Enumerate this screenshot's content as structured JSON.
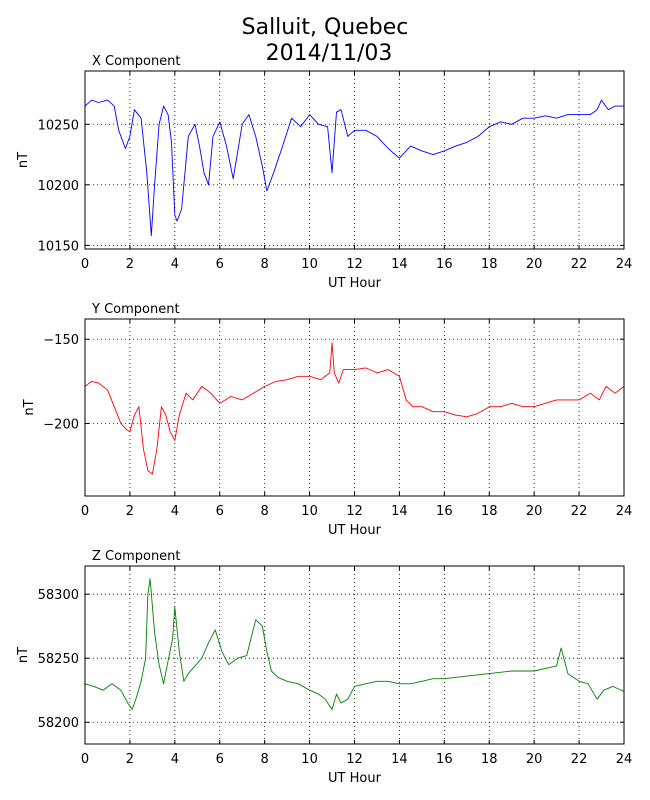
{
  "figure": {
    "title_line1": "Salluit, Quebec",
    "title_line2": "2014/11/03"
  },
  "chart_data": [
    {
      "type": "line",
      "title": "X Component",
      "xlabel": "UT Hour",
      "ylabel": "nT",
      "xlim": [
        0,
        24
      ],
      "ylim": [
        10147,
        10294
      ],
      "xticks": [
        0,
        2,
        4,
        6,
        8,
        10,
        12,
        14,
        16,
        18,
        20,
        22,
        24
      ],
      "yticks": [
        10150,
        10200,
        10250
      ],
      "grid": true,
      "color": "#0000ff",
      "x": [
        0,
        0.3,
        0.6,
        1.0,
        1.3,
        1.5,
        1.8,
        2.0,
        2.2,
        2.5,
        2.75,
        2.95,
        3.1,
        3.3,
        3.5,
        3.7,
        3.85,
        4.0,
        4.1,
        4.3,
        4.6,
        4.9,
        5.1,
        5.3,
        5.5,
        5.7,
        6.0,
        6.3,
        6.6,
        7.0,
        7.3,
        7.6,
        7.9,
        8.1,
        8.4,
        8.8,
        9.2,
        9.6,
        10.0,
        10.4,
        10.8,
        11.0,
        11.2,
        11.4,
        11.7,
        12.0,
        12.5,
        13.0,
        13.5,
        14.0,
        14.5,
        15.0,
        15.5,
        16.0,
        16.5,
        17.0,
        17.5,
        18.0,
        18.5,
        19.0,
        19.5,
        20.0,
        20.5,
        21.0,
        21.5,
        22.0,
        22.5,
        22.8,
        23.0,
        23.3,
        23.6,
        24.0
      ],
      "y": [
        10265,
        10270,
        10268,
        10270,
        10265,
        10245,
        10230,
        10240,
        10262,
        10255,
        10210,
        10158,
        10200,
        10250,
        10265,
        10258,
        10235,
        10175,
        10170,
        10180,
        10240,
        10250,
        10232,
        10210,
        10200,
        10240,
        10252,
        10232,
        10205,
        10250,
        10258,
        10240,
        10215,
        10195,
        10210,
        10232,
        10255,
        10248,
        10258,
        10250,
        10248,
        10210,
        10260,
        10262,
        10240,
        10245,
        10245,
        10240,
        10230,
        10222,
        10232,
        10228,
        10225,
        10228,
        10232,
        10235,
        10240,
        10248,
        10252,
        10250,
        10255,
        10255,
        10257,
        10255,
        10258,
        10258,
        10258,
        10262,
        10270,
        10262,
        10265,
        10265
      ]
    },
    {
      "type": "line",
      "title": "Y Component",
      "xlabel": "UT Hour",
      "ylabel": "nT",
      "xlim": [
        0,
        24
      ],
      "ylim": [
        -243,
        -138
      ],
      "xticks": [
        0,
        2,
        4,
        6,
        8,
        10,
        12,
        14,
        16,
        18,
        20,
        22,
        24
      ],
      "yticks": [
        -150,
        -200
      ],
      "grid": true,
      "color": "#ff0000",
      "x": [
        0,
        0.3,
        0.6,
        1.0,
        1.3,
        1.6,
        1.8,
        2.0,
        2.2,
        2.4,
        2.6,
        2.8,
        3.0,
        3.2,
        3.4,
        3.6,
        3.8,
        4.0,
        4.2,
        4.5,
        4.8,
        5.2,
        5.6,
        6.0,
        6.5,
        7.0,
        7.5,
        8.0,
        8.5,
        9.0,
        9.5,
        10.0,
        10.5,
        10.9,
        11.0,
        11.1,
        11.3,
        11.5,
        12.0,
        12.5,
        13.0,
        13.5,
        14.0,
        14.3,
        14.6,
        15.0,
        15.5,
        16.0,
        16.5,
        17.0,
        17.5,
        18.0,
        18.5,
        19.0,
        19.5,
        20.0,
        20.5,
        21.0,
        21.5,
        22.0,
        22.5,
        22.9,
        23.2,
        23.6,
        24.0
      ],
      "y": [
        -178,
        -175,
        -176,
        -180,
        -190,
        -200,
        -203,
        -205,
        -195,
        -190,
        -215,
        -228,
        -230,
        -215,
        -190,
        -195,
        -205,
        -210,
        -195,
        -182,
        -186,
        -178,
        -182,
        -188,
        -184,
        -186,
        -182,
        -178,
        -175,
        -174,
        -172,
        -172,
        -174,
        -170,
        -152,
        -170,
        -176,
        -168,
        -168,
        -167,
        -170,
        -168,
        -172,
        -186,
        -190,
        -190,
        -193,
        -193,
        -195,
        -196,
        -194,
        -190,
        -190,
        -188,
        -190,
        -190,
        -188,
        -186,
        -186,
        -186,
        -182,
        -186,
        -178,
        -182,
        -178
      ]
    },
    {
      "type": "line",
      "title": "Z Component",
      "xlabel": "UT Hour",
      "ylabel": "nT",
      "xlim": [
        0,
        24
      ],
      "ylim": [
        58183,
        58322
      ],
      "xticks": [
        0,
        2,
        4,
        6,
        8,
        10,
        12,
        14,
        16,
        18,
        20,
        22,
        24
      ],
      "yticks": [
        58200,
        58250,
        58300
      ],
      "grid": true,
      "color": "#008000",
      "x": [
        0,
        0.4,
        0.8,
        1.2,
        1.6,
        1.9,
        2.1,
        2.3,
        2.5,
        2.7,
        2.8,
        2.9,
        3.1,
        3.3,
        3.5,
        3.7,
        3.9,
        4.0,
        4.2,
        4.4,
        4.6,
        4.9,
        5.2,
        5.5,
        5.8,
        6.1,
        6.4,
        6.8,
        7.2,
        7.6,
        7.9,
        8.1,
        8.3,
        8.6,
        9.0,
        9.5,
        10.0,
        10.4,
        10.7,
        11.0,
        11.2,
        11.4,
        11.7,
        12.0,
        12.5,
        13.0,
        13.5,
        14.0,
        14.5,
        15.0,
        15.5,
        16.0,
        17.0,
        18.0,
        19.0,
        19.5,
        20.0,
        20.5,
        21.0,
        21.2,
        21.5,
        22.0,
        22.4,
        22.8,
        23.1,
        23.5,
        24.0
      ],
      "y": [
        58230,
        58228,
        58225,
        58230,
        58225,
        58215,
        58210,
        58220,
        58232,
        58250,
        58300,
        58312,
        58270,
        58245,
        58230,
        58248,
        58265,
        58290,
        58255,
        58232,
        58238,
        58244,
        58250,
        58262,
        58272,
        58255,
        58245,
        58250,
        58252,
        58280,
        58275,
        58255,
        58240,
        58235,
        58232,
        58230,
        58225,
        58222,
        58218,
        58210,
        58222,
        58215,
        58218,
        58228,
        58230,
        58232,
        58232,
        58230,
        58230,
        58232,
        58234,
        58234,
        58236,
        58238,
        58240,
        58240,
        58240,
        58242,
        58244,
        58258,
        58238,
        58232,
        58230,
        58218,
        58225,
        58228,
        58224
      ]
    }
  ]
}
